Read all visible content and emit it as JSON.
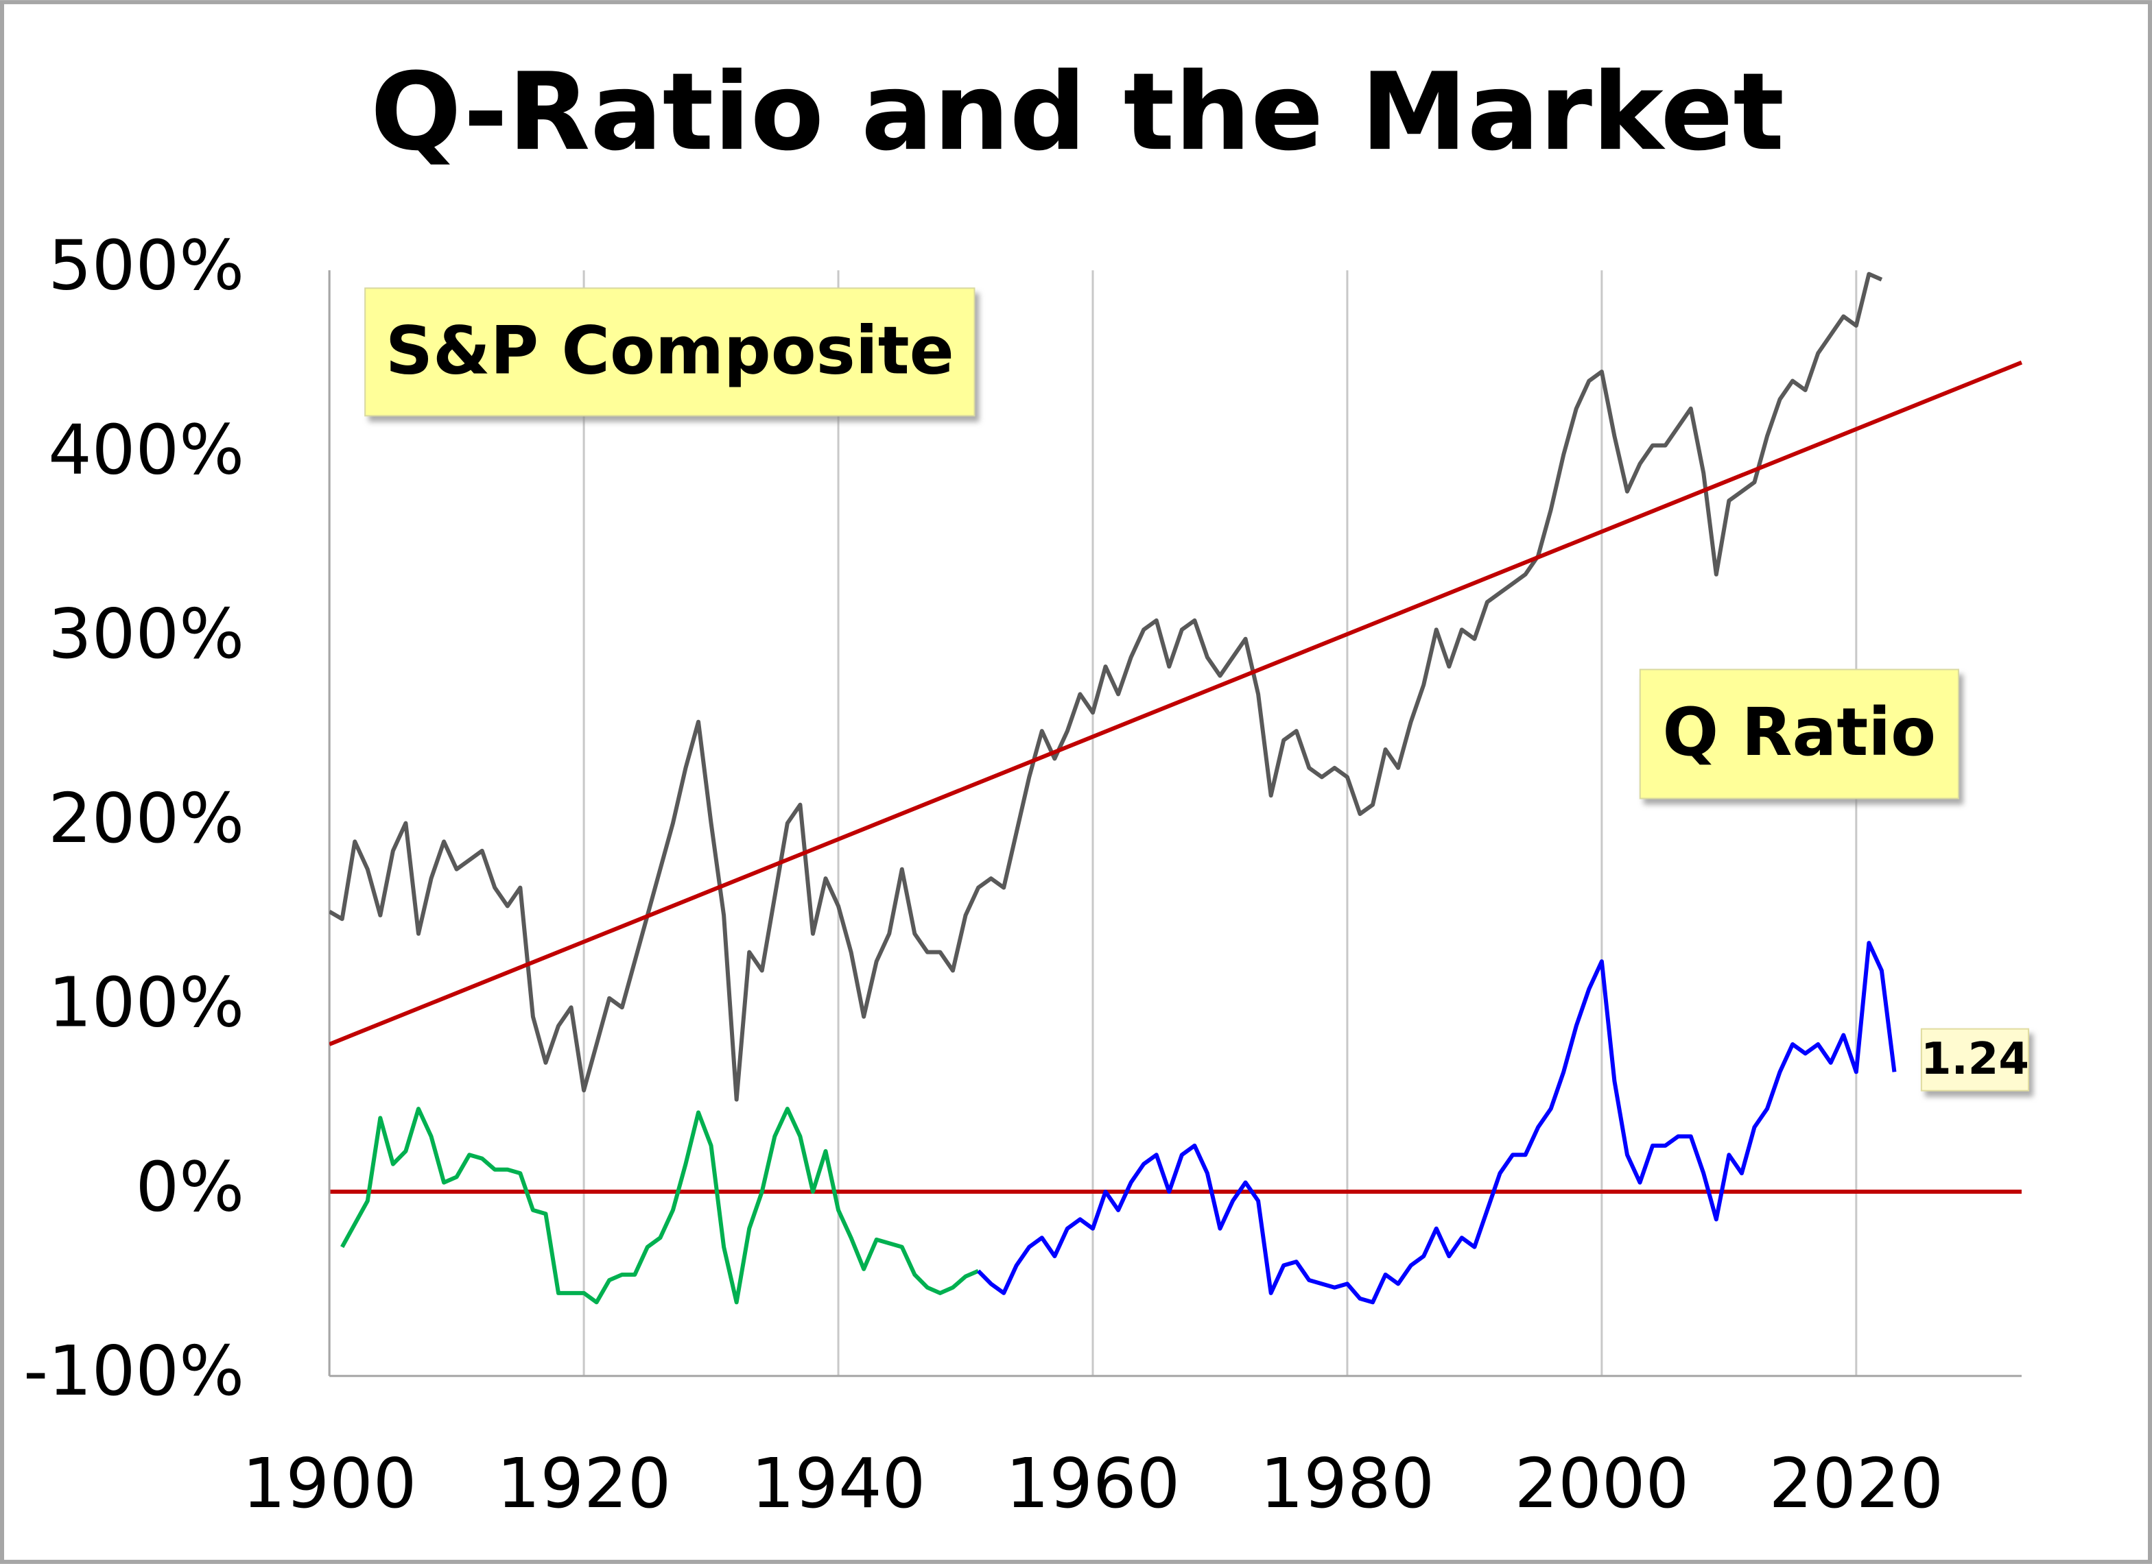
{
  "chart_data": {
    "type": "line",
    "title": "Q-Ratio and the Market",
    "xlim": [
      1900,
      2033
    ],
    "xticks": [
      1900,
      1920,
      1940,
      1960,
      1980,
      2000,
      2020
    ],
    "ylim": [
      -100,
      500
    ],
    "yticks": [
      {
        "value": -100,
        "label": "-100%"
      },
      {
        "value": 0,
        "label": "0%"
      },
      {
        "value": 100,
        "label": "100%"
      },
      {
        "value": 200,
        "label": "200%"
      },
      {
        "value": 300,
        "label": "300%"
      },
      {
        "value": 400,
        "label": "400%"
      },
      {
        "value": 500,
        "label": "500%"
      }
    ],
    "grid": true,
    "zero_line_color": "#c00000",
    "series": [
      {
        "name": "S&P Composite",
        "color": "#595959",
        "x": [
          1900,
          1901,
          1902,
          1903,
          1904,
          1905,
          1906,
          1907,
          1908,
          1909,
          1910,
          1911,
          1912,
          1913,
          1914,
          1915,
          1916,
          1917,
          1918,
          1919,
          1920,
          1921,
          1922,
          1923,
          1924,
          1925,
          1926,
          1927,
          1928,
          1929,
          1930,
          1931,
          1932,
          1933,
          1934,
          1935,
          1936,
          1937,
          1938,
          1939,
          1940,
          1941,
          1942,
          1943,
          1944,
          1945,
          1946,
          1947,
          1948,
          1949,
          1950,
          1951,
          1952,
          1953,
          1954,
          1955,
          1956,
          1957,
          1958,
          1959,
          1960,
          1961,
          1962,
          1963,
          1964,
          1965,
          1966,
          1967,
          1968,
          1969,
          1970,
          1971,
          1972,
          1973,
          1974,
          1975,
          1976,
          1977,
          1978,
          1979,
          1980,
          1981,
          1982,
          1983,
          1984,
          1985,
          1986,
          1987,
          1988,
          1989,
          1990,
          1991,
          1992,
          1993,
          1994,
          1995,
          1996,
          1997,
          1998,
          1999,
          2000,
          2001,
          2002,
          2003,
          2004,
          2005,
          2006,
          2007,
          2008,
          2009,
          2010,
          2011,
          2012,
          2013,
          2014,
          2015,
          2016,
          2017,
          2018,
          2019,
          2020,
          2021,
          2022
        ],
        "values": [
          152,
          148,
          190,
          175,
          150,
          185,
          200,
          140,
          170,
          190,
          175,
          180,
          185,
          165,
          155,
          165,
          95,
          70,
          90,
          100,
          55,
          80,
          105,
          100,
          125,
          150,
          175,
          200,
          230,
          255,
          200,
          150,
          50,
          130,
          120,
          160,
          200,
          210,
          140,
          170,
          155,
          130,
          95,
          125,
          140,
          175,
          140,
          130,
          130,
          120,
          150,
          165,
          170,
          165,
          195,
          225,
          250,
          235,
          250,
          270,
          260,
          285,
          270,
          290,
          305,
          310,
          285,
          305,
          310,
          290,
          280,
          290,
          300,
          270,
          215,
          245,
          250,
          230,
          225,
          230,
          225,
          205,
          210,
          240,
          230,
          255,
          275,
          305,
          285,
          305,
          300,
          320,
          325,
          330,
          335,
          345,
          370,
          400,
          425,
          440,
          445,
          410,
          380,
          395,
          405,
          405,
          415,
          425,
          390,
          335,
          375,
          380,
          385,
          410,
          430,
          440,
          435,
          455,
          465,
          475,
          470,
          498,
          495
        ]
      },
      {
        "color": "#c00000",
        "x": [
          1900,
          2033
        ],
        "values": [
          80,
          450
        ]
      },
      {
        "color": "#00b050",
        "x": [
          1901,
          1903,
          1904,
          1905,
          1906,
          1907,
          1908,
          1909,
          1910,
          1911,
          1912,
          1913,
          1914,
          1915,
          1916,
          1917,
          1918,
          1919,
          1920,
          1921,
          1922,
          1923,
          1924,
          1925,
          1926,
          1927,
          1928,
          1929,
          1930,
          1931,
          1932,
          1933,
          1934,
          1935,
          1936,
          1937,
          1938,
          1939,
          1940,
          1941,
          1942,
          1943,
          1944,
          1945,
          1946,
          1947,
          1948,
          1949,
          1950,
          1951
        ],
        "values": [
          -30,
          -5,
          40,
          15,
          22,
          45,
          30,
          5,
          8,
          20,
          18,
          12,
          12,
          10,
          -10,
          -12,
          -55,
          -55,
          -55,
          -60,
          -48,
          -45,
          -45,
          -30,
          -25,
          -10,
          15,
          43,
          25,
          -30,
          -60,
          -20,
          0,
          30,
          45,
          30,
          0,
          22,
          -10,
          -25,
          -42,
          -26,
          -28,
          -30,
          -45,
          -52,
          -55,
          -52,
          -46,
          -43
        ]
      },
      {
        "name": "Q Ratio",
        "color": "#0000ff",
        "x": [
          1951,
          1952,
          1953,
          1954,
          1955,
          1956,
          1957,
          1958,
          1959,
          1960,
          1961,
          1962,
          1963,
          1964,
          1965,
          1966,
          1967,
          1968,
          1969,
          1970,
          1971,
          1972,
          1973,
          1974,
          1975,
          1976,
          1977,
          1978,
          1979,
          1980,
          1981,
          1982,
          1983,
          1984,
          1985,
          1986,
          1987,
          1988,
          1989,
          1990,
          1991,
          1992,
          1993,
          1994,
          1995,
          1996,
          1997,
          1998,
          1999,
          2000,
          2001,
          2002,
          2003,
          2004,
          2005,
          2006,
          2007,
          2008,
          2009,
          2010,
          2011,
          2012,
          2013,
          2014,
          2015,
          2016,
          2017,
          2018,
          2019,
          2020,
          2021,
          2022,
          2023
        ],
        "values": [
          -43,
          -50,
          -55,
          -40,
          -30,
          -25,
          -35,
          -20,
          -15,
          -20,
          0,
          -10,
          5,
          15,
          20,
          0,
          20,
          25,
          10,
          -20,
          -5,
          5,
          -5,
          -55,
          -40,
          -38,
          -48,
          -50,
          -52,
          -50,
          -58,
          -60,
          -45,
          -50,
          -40,
          -35,
          -20,
          -35,
          -25,
          -30,
          -10,
          10,
          20,
          20,
          35,
          45,
          65,
          90,
          110,
          125,
          60,
          20,
          5,
          25,
          25,
          30,
          30,
          10,
          -15,
          20,
          10,
          35,
          45,
          65,
          80,
          75,
          80,
          70,
          85,
          65,
          135,
          120,
          65
        ]
      }
    ],
    "annotations": [
      {
        "text": "1.24",
        "color": "#c00000"
      }
    ]
  }
}
